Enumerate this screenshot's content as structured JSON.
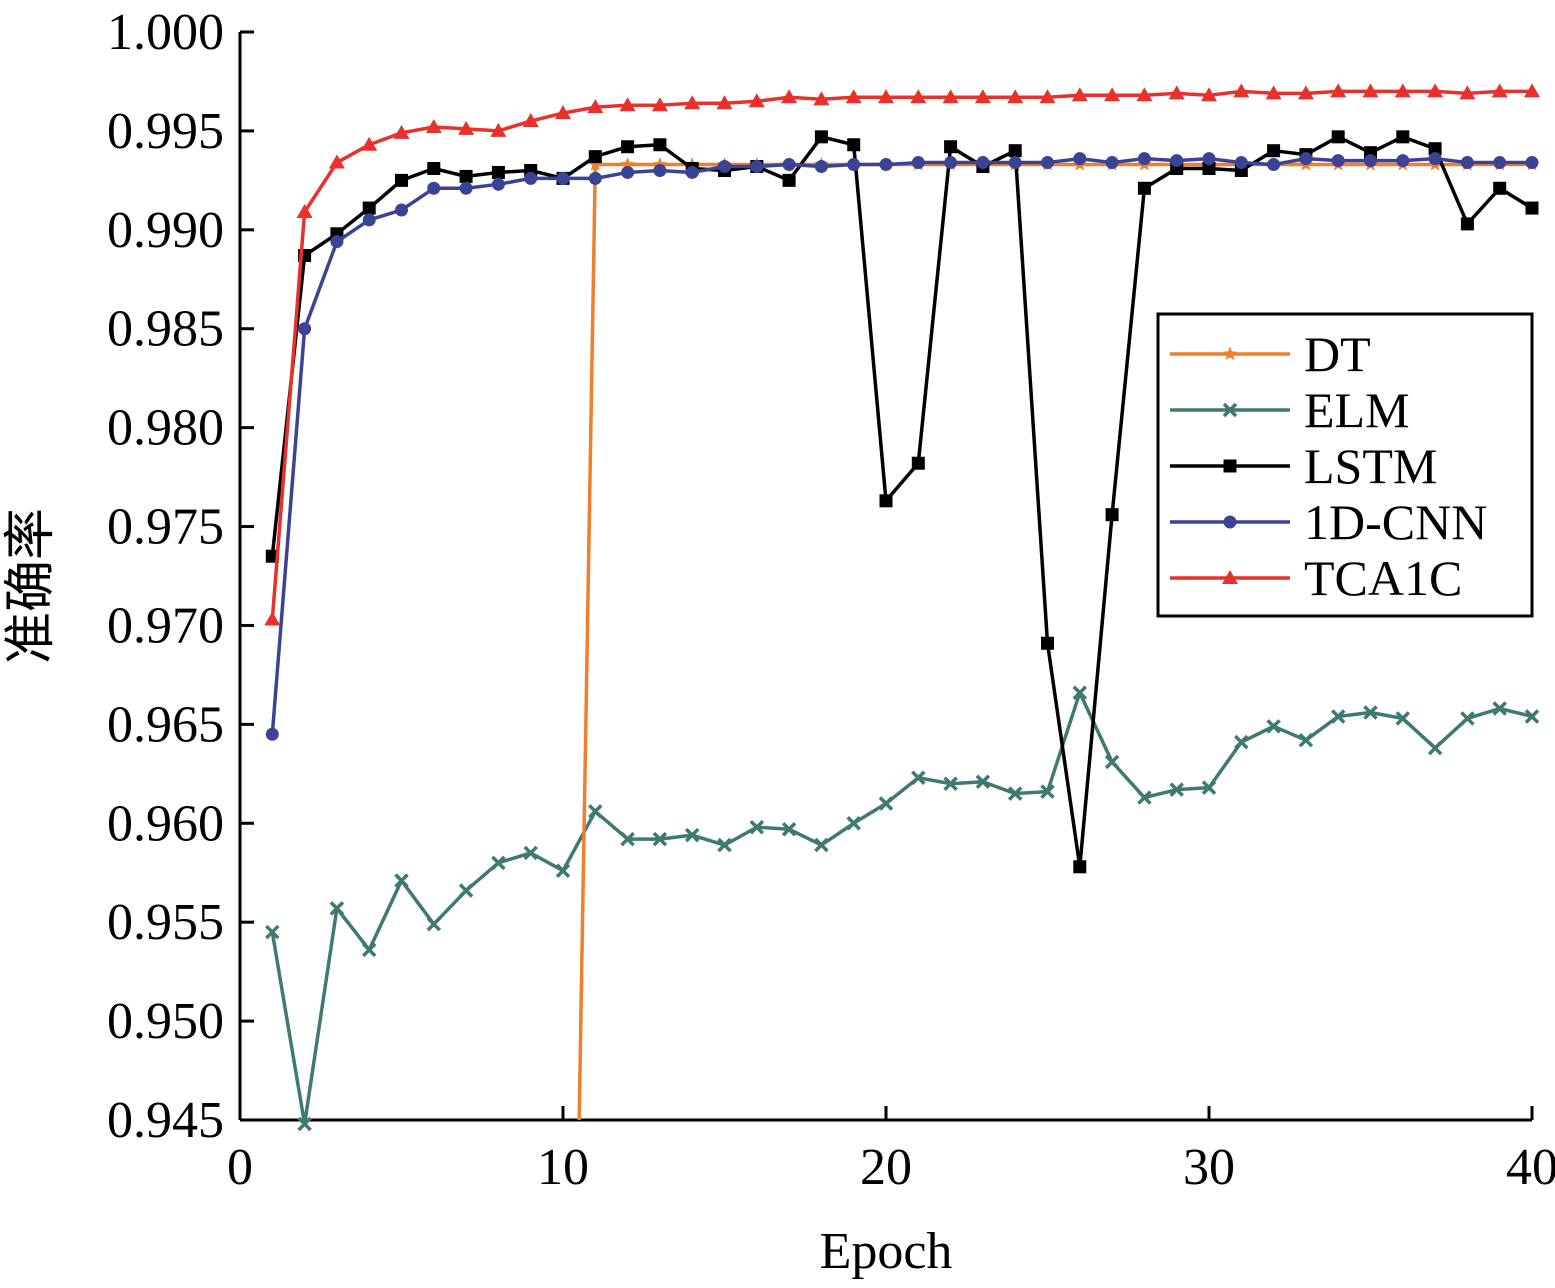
{
  "chart_data": {
    "type": "line",
    "title": "",
    "xlabel": "Epoch",
    "ylabel": "准确率",
    "xlim": [
      0,
      40
    ],
    "ylim": [
      0.945,
      1.0
    ],
    "xticks": [
      0,
      10,
      20,
      30,
      40
    ],
    "xtick_labels": [
      "0",
      "10",
      "20",
      "30",
      "40"
    ],
    "yticks": [
      0.945,
      0.95,
      0.955,
      0.96,
      0.965,
      0.97,
      0.975,
      0.98,
      0.985,
      0.99,
      0.995,
      1.0
    ],
    "ytick_labels": [
      "0.945",
      "0.950",
      "0.955",
      "0.960",
      "0.965",
      "0.970",
      "0.975",
      "0.980",
      "0.985",
      "0.990",
      "0.995",
      "1.000"
    ],
    "grid": false,
    "legend_position": "right",
    "series": [
      {
        "name": "DT",
        "color": "#f07f2c",
        "marker": "star",
        "x": [
          10.5,
          11,
          12,
          13,
          14,
          15,
          16,
          17,
          18,
          19,
          20,
          21,
          22,
          23,
          24,
          25,
          26,
          27,
          28,
          29,
          30,
          31,
          32,
          33,
          34,
          35,
          36,
          37,
          38,
          39,
          40
        ],
        "y": [
          0.945,
          0.9933,
          0.9933,
          0.9933,
          0.9933,
          0.9933,
          0.9933,
          0.9933,
          0.9933,
          0.9933,
          0.9933,
          0.9933,
          0.9933,
          0.9933,
          0.9933,
          0.9933,
          0.9933,
          0.9933,
          0.9933,
          0.9933,
          0.9933,
          0.9933,
          0.9933,
          0.9933,
          0.9933,
          0.9933,
          0.9933,
          0.9933,
          0.9933,
          0.9933,
          0.9933
        ],
        "marker_start": 1
      },
      {
        "name": "ELM",
        "color": "#3e7a70",
        "marker": "x",
        "x": [
          1,
          2,
          3,
          4,
          5,
          6,
          7,
          8,
          9,
          10,
          11,
          12,
          13,
          14,
          15,
          16,
          17,
          18,
          19,
          20,
          21,
          22,
          23,
          24,
          25,
          26,
          27,
          28,
          29,
          30,
          31,
          32,
          33,
          34,
          35,
          36,
          37,
          38,
          39,
          40
        ],
        "y": [
          0.9545,
          0.9448,
          0.9557,
          0.9536,
          0.9571,
          0.9549,
          0.9566,
          0.958,
          0.9585,
          0.9576,
          0.9606,
          0.9592,
          0.9592,
          0.9594,
          0.9589,
          0.9598,
          0.9597,
          0.9589,
          0.96,
          0.961,
          0.9623,
          0.962,
          0.9621,
          0.9615,
          0.9616,
          0.9666,
          0.9631,
          0.9613,
          0.9617,
          0.9618,
          0.9641,
          0.9649,
          0.9642,
          0.9654,
          0.9656,
          0.9653,
          0.9638,
          0.9653,
          0.9658,
          0.9654
        ]
      },
      {
        "name": "LSTM",
        "color": "#000000",
        "marker": "square",
        "x": [
          1,
          2,
          3,
          4,
          5,
          6,
          7,
          8,
          9,
          10,
          11,
          12,
          13,
          14,
          15,
          16,
          17,
          18,
          19,
          20,
          21,
          22,
          23,
          24,
          25,
          26,
          27,
          28,
          29,
          30,
          31,
          32,
          33,
          34,
          35,
          36,
          37,
          38,
          39,
          40
        ],
        "y": [
          0.9735,
          0.9887,
          0.9898,
          0.9911,
          0.9925,
          0.9931,
          0.9927,
          0.9929,
          0.993,
          0.9926,
          0.9937,
          0.9942,
          0.9943,
          0.9931,
          0.993,
          0.9932,
          0.9925,
          0.9947,
          0.9943,
          0.9763,
          0.9782,
          0.9942,
          0.9932,
          0.994,
          0.9691,
          0.9578,
          0.9756,
          0.9921,
          0.9931,
          0.9931,
          0.993,
          0.994,
          0.9938,
          0.9947,
          0.9939,
          0.9947,
          0.9941,
          0.9903,
          0.9921,
          0.9911
        ]
      },
      {
        "name": "1D-CNN",
        "color": "#3b4395",
        "marker": "circle",
        "x": [
          1,
          2,
          3,
          4,
          5,
          6,
          7,
          8,
          9,
          10,
          11,
          12,
          13,
          14,
          15,
          16,
          17,
          18,
          19,
          20,
          21,
          22,
          23,
          24,
          25,
          26,
          27,
          28,
          29,
          30,
          31,
          32,
          33,
          34,
          35,
          36,
          37,
          38,
          39,
          40
        ],
        "y": [
          0.9645,
          0.985,
          0.9894,
          0.9905,
          0.991,
          0.9921,
          0.9921,
          0.9923,
          0.9926,
          0.9926,
          0.9926,
          0.9929,
          0.993,
          0.9929,
          0.9932,
          0.9932,
          0.9933,
          0.9932,
          0.9933,
          0.9933,
          0.9934,
          0.9934,
          0.9934,
          0.9934,
          0.9934,
          0.9936,
          0.9934,
          0.9936,
          0.9935,
          0.9936,
          0.9934,
          0.9933,
          0.9936,
          0.9935,
          0.9935,
          0.9935,
          0.9936,
          0.9934,
          0.9934,
          0.9934
        ]
      },
      {
        "name": "TCA1C",
        "color": "#e8312b",
        "marker": "triangle",
        "x": [
          1,
          2,
          3,
          4,
          5,
          6,
          7,
          8,
          9,
          10,
          11,
          12,
          13,
          14,
          15,
          16,
          17,
          18,
          19,
          20,
          21,
          22,
          23,
          24,
          25,
          26,
          27,
          28,
          29,
          30,
          31,
          32,
          33,
          34,
          35,
          36,
          37,
          38,
          39,
          40
        ],
        "y": [
          0.9703,
          0.9909,
          0.9934,
          0.9943,
          0.9949,
          0.9952,
          0.9951,
          0.995,
          0.9955,
          0.9959,
          0.9962,
          0.9963,
          0.9963,
          0.9964,
          0.9964,
          0.9965,
          0.9967,
          0.9966,
          0.9967,
          0.9967,
          0.9967,
          0.9967,
          0.9967,
          0.9967,
          0.9967,
          0.9968,
          0.9968,
          0.9968,
          0.9969,
          0.9968,
          0.997,
          0.9969,
          0.9969,
          0.997,
          0.997,
          0.997,
          0.997,
          0.9969,
          0.997,
          0.997
        ]
      }
    ]
  }
}
